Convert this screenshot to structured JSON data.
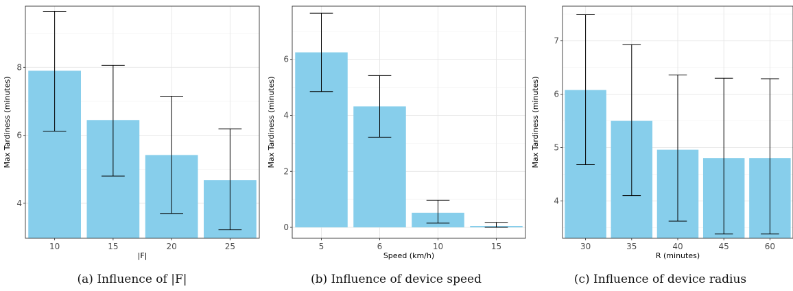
{
  "chart_data": [
    {
      "type": "bar",
      "caption": "(a) Influence of |F|",
      "xlabel": "|F|",
      "ylabel": "Max Tardiness (minutes)",
      "categories": [
        "10",
        "15",
        "20",
        "25"
      ],
      "values": [
        7.9,
        6.45,
        5.42,
        4.68
      ],
      "error_low": [
        6.12,
        4.8,
        3.7,
        3.22
      ],
      "error_high": [
        9.65,
        8.06,
        7.15,
        6.19
      ],
      "ylim": [
        2.97,
        9.8
      ],
      "yticks": [
        4,
        6,
        8
      ],
      "grid": true,
      "bar_color": "#87CEEB"
    },
    {
      "type": "bar",
      "caption": "(b) Influence of device speed",
      "xlabel": "Speed (km/h)",
      "ylabel": "Max Tardiness (minutes)",
      "categories": [
        "5",
        "6",
        "10",
        "15"
      ],
      "values": [
        6.25,
        4.32,
        0.52,
        0.05
      ],
      "error_low": [
        4.85,
        3.22,
        0.15,
        0.0
      ],
      "error_high": [
        7.65,
        5.42,
        0.97,
        0.18
      ],
      "ylim": [
        -0.39,
        7.9
      ],
      "yticks": [
        0,
        2,
        4,
        6
      ],
      "grid": true,
      "bar_color": "#87CEEB"
    },
    {
      "type": "bar",
      "caption": "(c) Influence of device radius",
      "xlabel": "R (minutes)",
      "ylabel": "Max Tardiness (minutes)",
      "categories": [
        "30",
        "35",
        "40",
        "45",
        "60"
      ],
      "values": [
        6.08,
        5.5,
        4.96,
        4.8,
        4.8
      ],
      "error_low": [
        4.68,
        4.1,
        3.62,
        3.38,
        3.38
      ],
      "error_high": [
        7.49,
        6.93,
        6.36,
        6.3,
        6.29
      ],
      "ylim": [
        3.3,
        7.65
      ],
      "yticks": [
        4,
        5,
        6,
        7
      ],
      "grid": true,
      "bar_color": "#87CEEB"
    }
  ]
}
